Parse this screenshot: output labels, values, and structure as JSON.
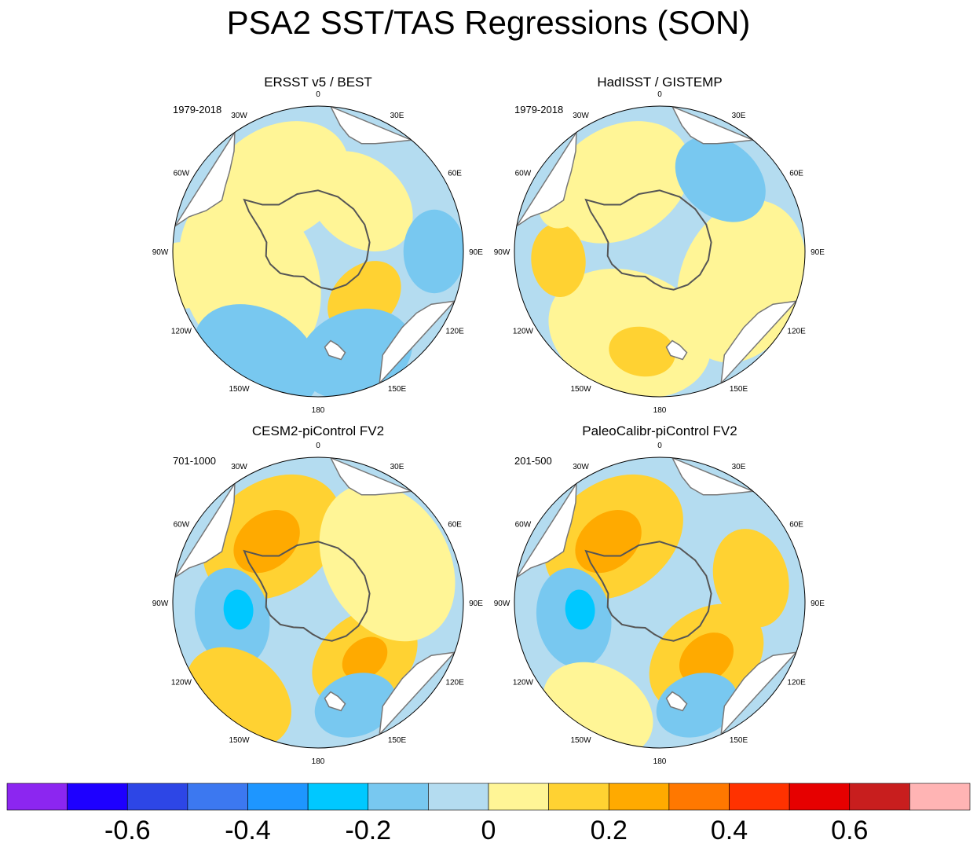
{
  "figure": {
    "title": "PSA2 SST/TAS Regressions (SON)"
  },
  "chart_data": {
    "type": "heatmap",
    "projection": "south-polar-stereographic",
    "longitude_labels": [
      "0",
      "30E",
      "60E",
      "90E",
      "120E",
      "150E",
      "180",
      "150W",
      "120W",
      "90W",
      "60W",
      "30W"
    ],
    "panels": [
      {
        "title": "ERSST v5 / BEST",
        "period": "1979-2018",
        "regions": [
          {
            "type": "blob",
            "lon": -110,
            "r": 0.5,
            "size": 0.55,
            "level": "pos1"
          },
          {
            "type": "blob",
            "lon": -30,
            "r": 0.55,
            "size": 0.45,
            "level": "pos1"
          },
          {
            "type": "blob",
            "lon": 40,
            "r": 0.45,
            "size": 0.35,
            "level": "pos1"
          },
          {
            "type": "blob",
            "lon": 135,
            "r": 0.45,
            "size": 0.25,
            "level": "pos2"
          },
          {
            "type": "blob",
            "lon": 160,
            "r": 0.75,
            "size": 0.35,
            "level": "neg2"
          },
          {
            "type": "blob",
            "lon": -150,
            "r": 0.85,
            "size": 0.4,
            "level": "neg2"
          },
          {
            "type": "blob",
            "lon": 90,
            "r": 0.8,
            "size": 0.25,
            "level": "neg2"
          },
          {
            "type": "blob",
            "lon": -100,
            "r": 0.95,
            "size": 0.2,
            "level": "pos1"
          }
        ]
      },
      {
        "title": "HadISST / GISTEMP",
        "period": "1979-2018",
        "regions": [
          {
            "type": "blob",
            "lon": -30,
            "r": 0.55,
            "size": 0.45,
            "level": "pos1"
          },
          {
            "type": "blob",
            "lon": 110,
            "r": 0.6,
            "size": 0.5,
            "level": "pos1"
          },
          {
            "type": "blob",
            "lon": -160,
            "r": 0.6,
            "size": 0.5,
            "level": "pos1"
          },
          {
            "type": "blob",
            "lon": -95,
            "r": 0.7,
            "size": 0.22,
            "level": "pos2"
          },
          {
            "type": "blob",
            "lon": -170,
            "r": 0.7,
            "size": 0.2,
            "level": "pos2"
          },
          {
            "type": "blob",
            "lon": 40,
            "r": 0.65,
            "size": 0.3,
            "level": "neg2"
          },
          {
            "type": "blob",
            "lon": -60,
            "r": 0.75,
            "size": 0.2,
            "level": "pos1"
          }
        ]
      },
      {
        "title": "CESM2-piControl FV2",
        "period": "701-1000",
        "regions": [
          {
            "type": "blob",
            "lon": -35,
            "r": 0.55,
            "size": 0.45,
            "level": "pos2"
          },
          {
            "type": "blob",
            "lon": -40,
            "r": 0.55,
            "size": 0.22,
            "level": "pos3"
          },
          {
            "type": "blob",
            "lon": 140,
            "r": 0.5,
            "size": 0.35,
            "level": "pos2"
          },
          {
            "type": "blob",
            "lon": 140,
            "r": 0.5,
            "size": 0.15,
            "level": "pos3"
          },
          {
            "type": "blob",
            "lon": 60,
            "r": 0.55,
            "size": 0.5,
            "level": "pos1"
          },
          {
            "type": "blob",
            "lon": -100,
            "r": 0.6,
            "size": 0.3,
            "level": "neg2"
          },
          {
            "type": "blob",
            "lon": -95,
            "r": 0.55,
            "size": 0.12,
            "level": "neg3"
          },
          {
            "type": "blob",
            "lon": 160,
            "r": 0.75,
            "size": 0.25,
            "level": "neg2"
          },
          {
            "type": "blob",
            "lon": -140,
            "r": 0.85,
            "size": 0.35,
            "level": "pos2"
          }
        ]
      },
      {
        "title": "PaleoCalibr-piControl FV2",
        "period": "201-500",
        "regions": [
          {
            "type": "blob",
            "lon": -35,
            "r": 0.55,
            "size": 0.45,
            "level": "pos2"
          },
          {
            "type": "blob",
            "lon": -40,
            "r": 0.55,
            "size": 0.22,
            "level": "pos3"
          },
          {
            "type": "blob",
            "lon": 140,
            "r": 0.5,
            "size": 0.38,
            "level": "pos2"
          },
          {
            "type": "blob",
            "lon": 140,
            "r": 0.5,
            "size": 0.18,
            "level": "pos3"
          },
          {
            "type": "blob",
            "lon": 75,
            "r": 0.65,
            "size": 0.3,
            "level": "pos2"
          },
          {
            "type": "blob",
            "lon": -100,
            "r": 0.6,
            "size": 0.3,
            "level": "neg2"
          },
          {
            "type": "blob",
            "lon": -95,
            "r": 0.55,
            "size": 0.12,
            "level": "neg3"
          },
          {
            "type": "blob",
            "lon": 160,
            "r": 0.75,
            "size": 0.25,
            "level": "neg2"
          },
          {
            "type": "blob",
            "lon": -150,
            "r": 0.85,
            "size": 0.35,
            "level": "pos1"
          }
        ]
      }
    ],
    "colorbar": {
      "colors": [
        "#8c26f0",
        "#1e00ff",
        "#2d46e6",
        "#3c78f0",
        "#1e96ff",
        "#00c8ff",
        "#78c8f0",
        "#b4dcf0",
        "#fff596",
        "#ffd232",
        "#ffaa00",
        "#ff7800",
        "#ff3200",
        "#e60000",
        "#c81e1e",
        "#ffb4b4"
      ],
      "tick_labels": [
        "-0.6",
        "-0.4",
        "-0.2",
        "0",
        "0.2",
        "0.4",
        "0.6"
      ],
      "tick_values": [
        -0.6,
        -0.4,
        -0.2,
        0,
        0.2,
        0.4,
        0.6
      ],
      "levels": [
        -0.7,
        -0.6,
        -0.5,
        -0.4,
        -0.3,
        -0.2,
        -0.1,
        0,
        0.1,
        0.2,
        0.3,
        0.4,
        0.5,
        0.6,
        0.7
      ]
    },
    "level_colors": {
      "neg3": "#00c8ff",
      "neg2": "#78c8f0",
      "neg1": "#b4dcf0",
      "pos1": "#fff596",
      "pos2": "#ffd232",
      "pos3": "#ffaa00"
    }
  }
}
